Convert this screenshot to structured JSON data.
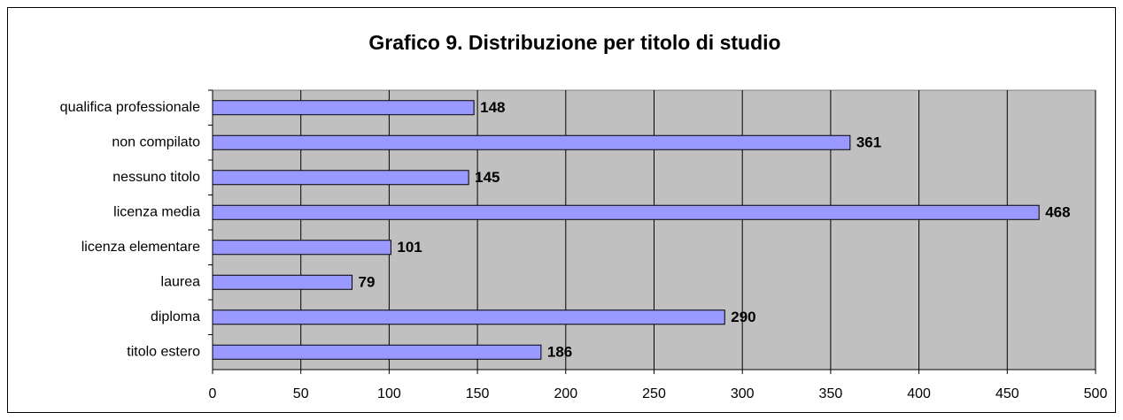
{
  "chart_data": {
    "type": "bar",
    "orientation": "horizontal",
    "title": "Grafico 9. Distribuzione per titolo di studio",
    "categories": [
      "qualifica professionale",
      "non compilato",
      "nessuno titolo",
      "licenza media",
      "licenza elementare",
      "laurea",
      "diploma",
      "titolo estero"
    ],
    "values": [
      148,
      361,
      145,
      468,
      101,
      79,
      290,
      186
    ],
    "color": "#9999ff",
    "xlim": [
      0,
      500
    ],
    "xticks": [
      0,
      50,
      100,
      150,
      200,
      250,
      300,
      350,
      400,
      450,
      500
    ],
    "grid": true
  }
}
